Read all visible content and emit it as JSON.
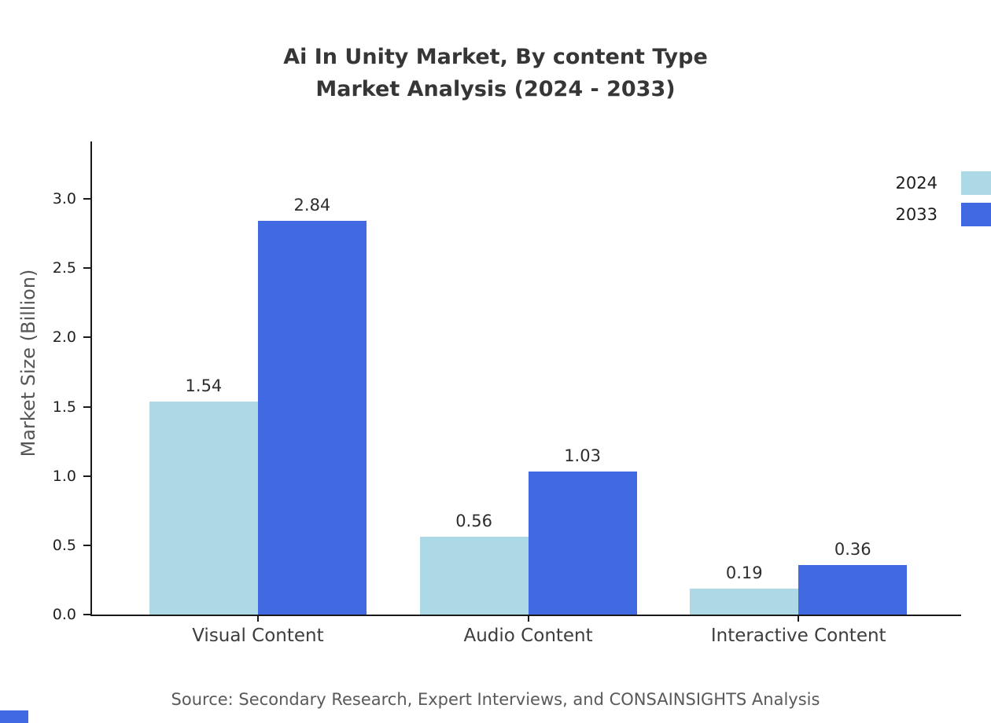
{
  "title": {
    "line1": "Ai In Unity Market, By content Type",
    "line2": "Market Analysis (2024 - 2033)"
  },
  "chart_data": {
    "type": "bar",
    "categories": [
      "Visual Content",
      "Audio Content",
      "Interactive Content"
    ],
    "series": [
      {
        "name": "2024",
        "color": "#add8e6",
        "values": [
          1.54,
          0.56,
          0.19
        ]
      },
      {
        "name": "2033",
        "color": "#4169e1",
        "values": [
          2.84,
          1.03,
          0.36
        ]
      }
    ],
    "xlabel": "",
    "ylabel": "Market Size (Billion)",
    "yticks": [
      0.0,
      0.5,
      1.0,
      1.5,
      2.0,
      2.5,
      3.0
    ],
    "ylim": [
      0,
      3.41
    ],
    "grid": false,
    "legend_position": "top-right",
    "value_label_decimals": 2
  },
  "source": "Source: Secondary Research, Expert Interviews, and CONSAINSIGHTS Analysis",
  "colors": {
    "axis": "#1a1a1a",
    "title_text": "#363636",
    "corner_mark": "#4169e1"
  }
}
